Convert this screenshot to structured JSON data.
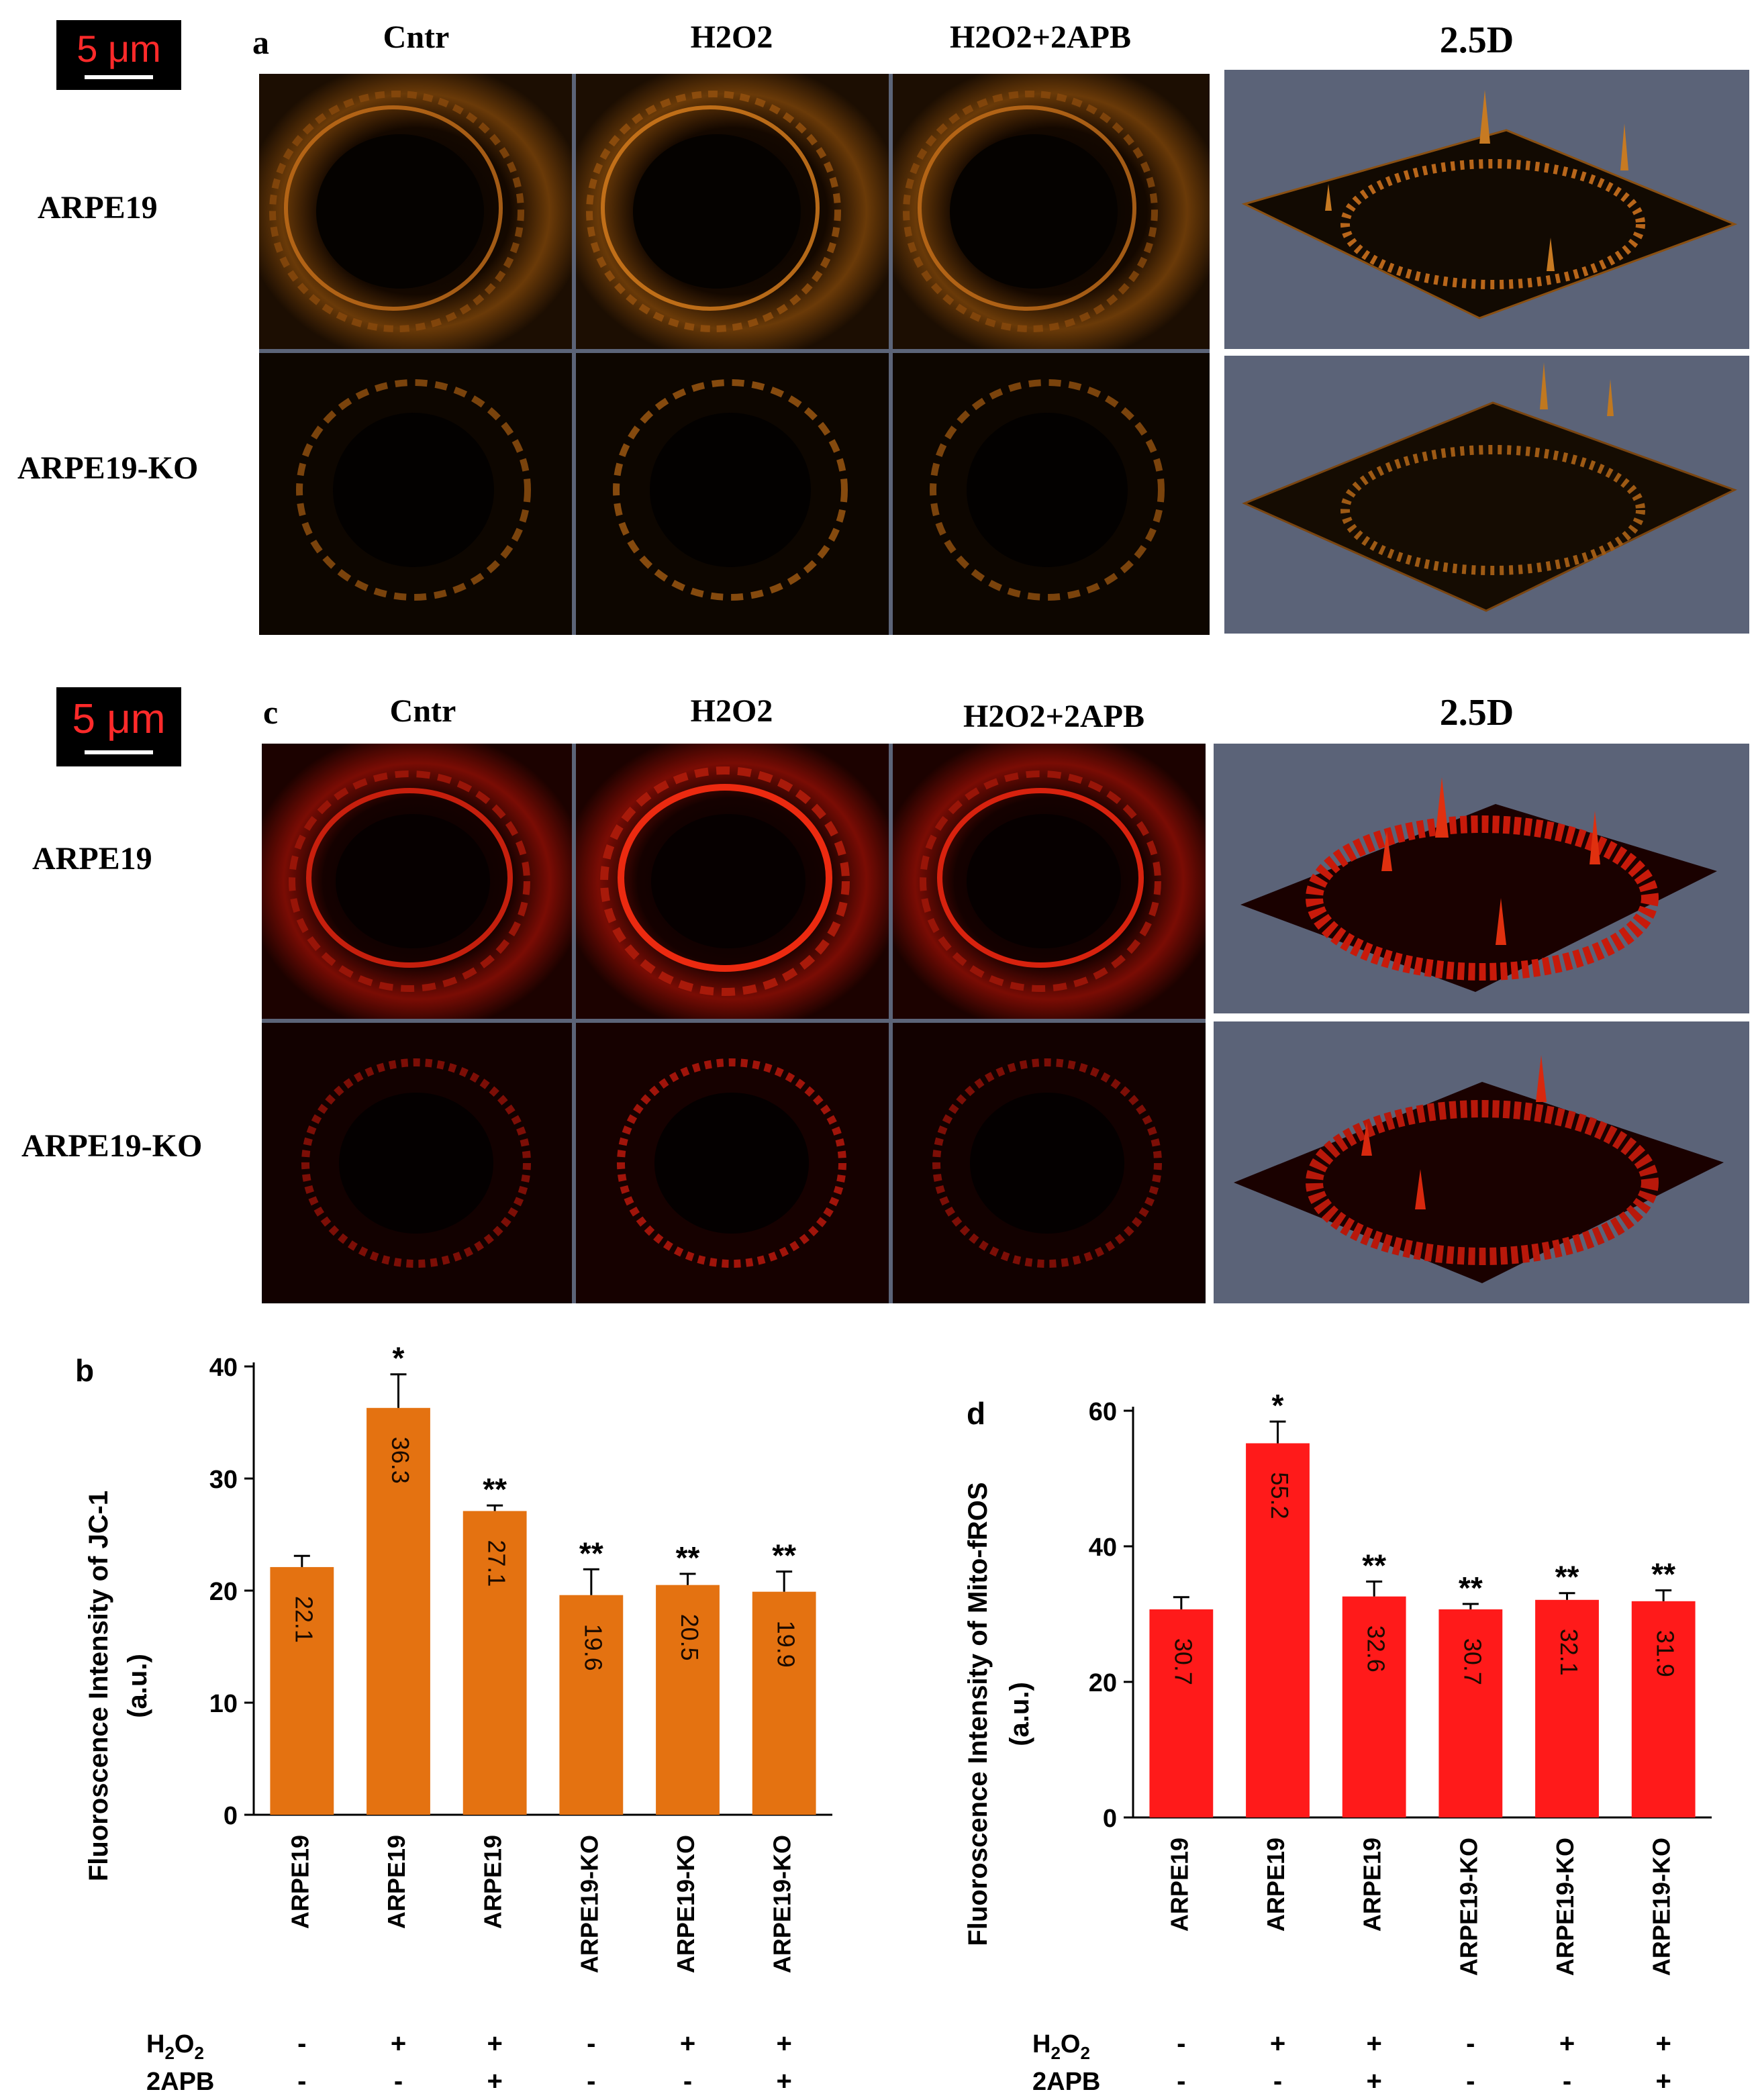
{
  "scale_bar": "5 μm",
  "panel_a": {
    "label": "a",
    "columns": [
      "Cntr",
      "H2O2",
      "H2O2+2APB",
      "2.5D"
    ],
    "rows": [
      "ARPE19",
      "ARPE19-KO"
    ],
    "color": "#e0841c"
  },
  "panel_c": {
    "label": "c",
    "columns": [
      "Cntr",
      "H2O2",
      "H2O2+2APB",
      "2.5D"
    ],
    "rows": [
      "ARPE19",
      "ARPE19-KO"
    ],
    "color": "#e8281a"
  },
  "chart_data": [
    {
      "type": "bar",
      "panel": "b",
      "ylabel_line1": "Fluoroscence Intensity of  JC-1",
      "ylabel_line2": "(a.u.)",
      "ylim": [
        0,
        40
      ],
      "yticks": [
        0,
        10,
        20,
        30,
        40
      ],
      "categories": [
        "ARPE19",
        "ARPE19",
        "ARPE19",
        "ARPE19-KO",
        "ARPE19-KO",
        "ARPE19-KO"
      ],
      "values": [
        22.1,
        36.3,
        27.1,
        19.6,
        20.5,
        19.9
      ],
      "errors": [
        1.0,
        3.0,
        0.5,
        2.3,
        1.0,
        1.8
      ],
      "value_labels": [
        "22.1",
        "36.3",
        "27.1",
        "19.6",
        "20.5",
        "19.9"
      ],
      "significance": [
        "",
        "*",
        "**",
        "**",
        "**",
        "**"
      ],
      "bar_color": "#e47211",
      "treatments": [
        {
          "name": "H2O2",
          "values": [
            "-",
            "+",
            "+",
            "-",
            "+",
            "+"
          ]
        },
        {
          "name": "2APB",
          "values": [
            "-",
            "-",
            "+",
            "-",
            "-",
            "+"
          ]
        }
      ]
    },
    {
      "type": "bar",
      "panel": "d",
      "ylabel_line1": "Fluoroscence Intensity of  Mito-fROS",
      "ylabel_line2": "(a.u.)",
      "ylim": [
        0,
        60
      ],
      "yticks": [
        0,
        20,
        40,
        60
      ],
      "categories": [
        "ARPE19",
        "ARPE19",
        "ARPE19",
        "ARPE19-KO",
        "ARPE19-KO",
        "ARPE19-KO"
      ],
      "values": [
        30.7,
        55.2,
        32.6,
        30.7,
        32.1,
        31.9
      ],
      "errors": [
        1.8,
        3.2,
        2.2,
        0.8,
        1.0,
        1.6
      ],
      "value_labels": [
        "30.7",
        "55.2",
        "32.6",
        "30.7",
        "32.1",
        "31.9"
      ],
      "significance": [
        "",
        "*",
        "**",
        "**",
        "**",
        "**"
      ],
      "bar_color": "#ff1a1a",
      "treatments": [
        {
          "name": "H2O2",
          "values": [
            "-",
            "+",
            "+",
            "-",
            "+",
            "+"
          ]
        },
        {
          "name": "2APB",
          "values": [
            "-",
            "-",
            "+",
            "-",
            "-",
            "+"
          ]
        }
      ]
    }
  ]
}
